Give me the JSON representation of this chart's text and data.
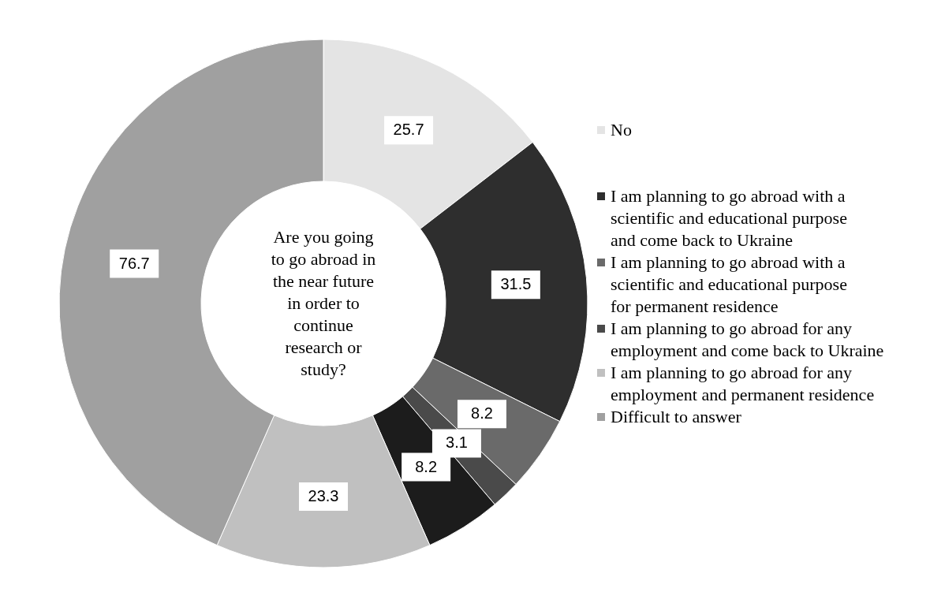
{
  "chart_data": {
    "type": "donut",
    "title": "Are you going to go abroad in the near future in order to continue research or study?",
    "categories": [
      "No",
      "I am planning to go abroad with a scientific and educational purpose and come back to Ukraine",
      "I am planning  to go abroad with a scientific and educational purpose for permanent residence",
      "I am planning  to go abroad for any employment and come back to Ukraine",
      null,
      "I am planning  to go abroad for any employment and permanent residence",
      "Difficult to answer"
    ],
    "values": [
      25.7,
      31.5,
      8.2,
      3.1,
      8.2,
      23.3,
      76.7
    ],
    "colors": [
      "#e4e4e4",
      "#2e2e2e",
      "#6a6a6a",
      "#4a4a4a",
      "#1c1c1c",
      "#c0c0c0",
      "#a0a0a0"
    ],
    "data_labels": true,
    "legend": "right"
  }
}
